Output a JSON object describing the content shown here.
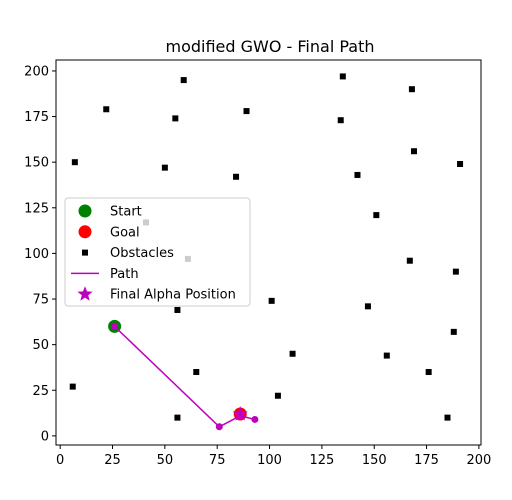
{
  "chart_data": {
    "type": "scatter",
    "title": "modified GWO - Final Path",
    "xlabel": "",
    "ylabel": "",
    "xlim": [
      -2,
      201
    ],
    "ylim": [
      -5,
      206
    ],
    "x_ticks": [
      0,
      25,
      50,
      75,
      100,
      125,
      150,
      175,
      200
    ],
    "y_ticks": [
      0,
      25,
      50,
      75,
      100,
      125,
      150,
      175,
      200
    ],
    "x_tick_labels": [
      "0",
      "25",
      "50",
      "75",
      "100",
      "125",
      "150",
      "175",
      "200"
    ],
    "y_tick_labels": [
      "0",
      "25",
      "50",
      "75",
      "100",
      "125",
      "150",
      "175",
      "200"
    ],
    "grid": false,
    "legend_placement": "center-left",
    "colors": {
      "start": "#008000",
      "goal": "#ff0000",
      "obstacle": "#000000",
      "path": "#bf00bf",
      "alpha": "#bf00bf"
    },
    "legend": [
      {
        "label": "Start",
        "marker": "circle",
        "color": "#008000"
      },
      {
        "label": "Goal",
        "marker": "circle",
        "color": "#ff0000"
      },
      {
        "label": "Obstacles",
        "marker": "square",
        "color": "#000000"
      },
      {
        "label": "Path",
        "marker": "line",
        "color": "#bf00bf"
      },
      {
        "label": "Final Alpha Position",
        "marker": "star",
        "color": "#bf00bf"
      }
    ],
    "start": {
      "x": 26,
      "y": 60
    },
    "goal": {
      "x": 86,
      "y": 12
    },
    "final_alpha": {
      "x": 86,
      "y": 12
    },
    "path": [
      {
        "x": 26,
        "y": 60
      },
      {
        "x": 76,
        "y": 5
      },
      {
        "x": 86,
        "y": 11
      },
      {
        "x": 93,
        "y": 9
      }
    ],
    "obstacles": [
      {
        "x": 7,
        "y": 150
      },
      {
        "x": 6,
        "y": 27
      },
      {
        "x": 22,
        "y": 179
      },
      {
        "x": 41,
        "y": 117
      },
      {
        "x": 50,
        "y": 147
      },
      {
        "x": 55,
        "y": 174
      },
      {
        "x": 59,
        "y": 195
      },
      {
        "x": 61,
        "y": 97
      },
      {
        "x": 56,
        "y": 69
      },
      {
        "x": 56,
        "y": 10
      },
      {
        "x": 65,
        "y": 35
      },
      {
        "x": 84,
        "y": 142
      },
      {
        "x": 89,
        "y": 178
      },
      {
        "x": 101,
        "y": 74
      },
      {
        "x": 104,
        "y": 22
      },
      {
        "x": 111,
        "y": 45
      },
      {
        "x": 134,
        "y": 173
      },
      {
        "x": 135,
        "y": 197
      },
      {
        "x": 142,
        "y": 143
      },
      {
        "x": 147,
        "y": 71
      },
      {
        "x": 151,
        "y": 121
      },
      {
        "x": 156,
        "y": 44
      },
      {
        "x": 167,
        "y": 96
      },
      {
        "x": 168,
        "y": 190
      },
      {
        "x": 169,
        "y": 156
      },
      {
        "x": 176,
        "y": 35
      },
      {
        "x": 185,
        "y": 10
      },
      {
        "x": 188,
        "y": 57
      },
      {
        "x": 189,
        "y": 90
      },
      {
        "x": 191,
        "y": 149
      }
    ]
  }
}
